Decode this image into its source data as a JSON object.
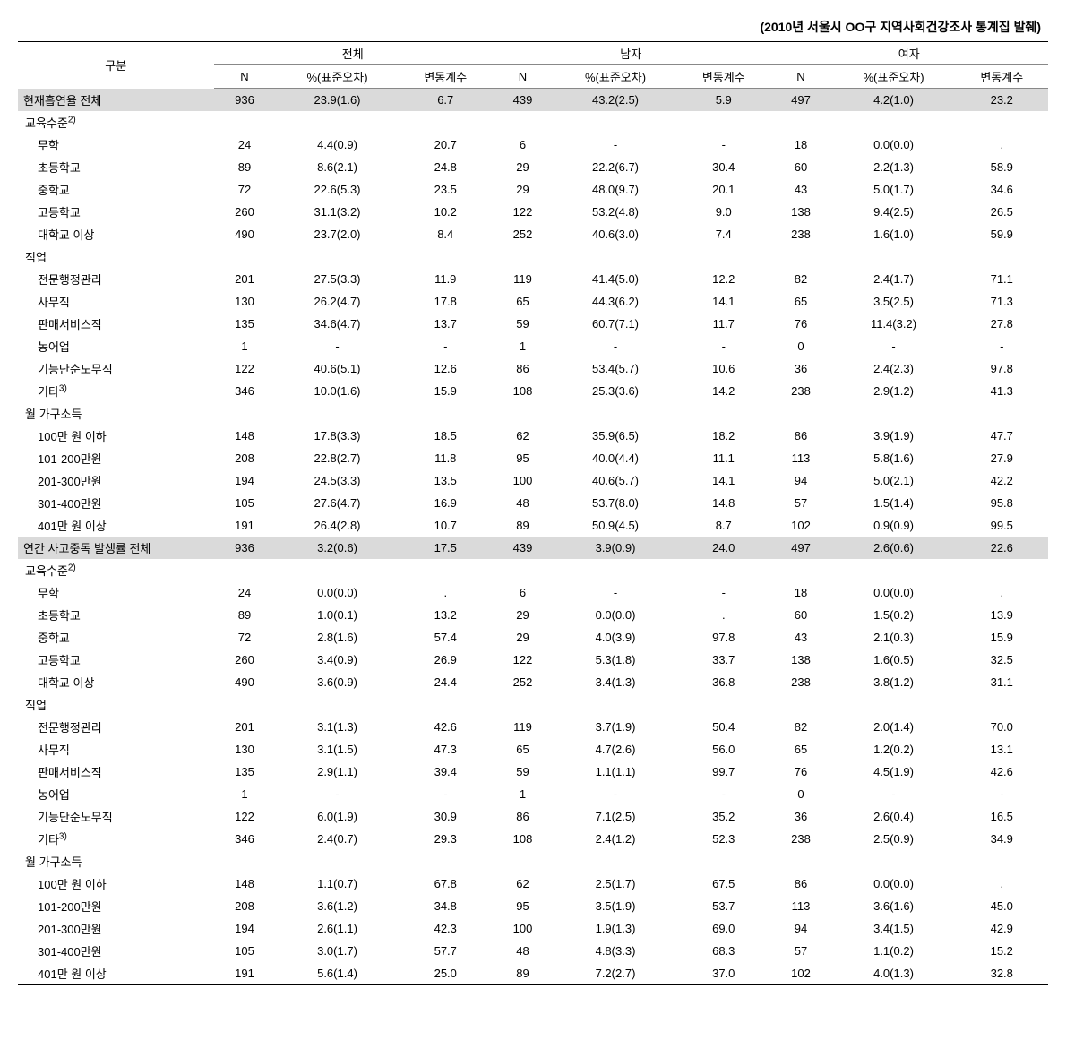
{
  "caption": "(2010년 서울시 OO구 지역사회건강조사 통계집 발췌)",
  "header": {
    "row_label": "구분",
    "groups": [
      "전체",
      "남자",
      "여자"
    ],
    "cols": [
      "N",
      "%(표준오차)",
      "변동계수"
    ]
  },
  "sup2": "2)",
  "sup3": "3)",
  "colors": {
    "background": "#ffffff",
    "highlight": "#dadada",
    "border_heavy": "#000000",
    "border_light": "#888888"
  },
  "sections": [
    {
      "title": "현재흡연율 전체",
      "total": [
        "936",
        "23.9(1.6)",
        "6.7",
        "439",
        "43.2(2.5)",
        "5.9",
        "497",
        "4.2(1.0)",
        "23.2"
      ],
      "groups": [
        {
          "label": "교육수준",
          "sup": "2)",
          "rows": [
            {
              "label": "무학",
              "v": [
                "24",
                "4.4(0.9)",
                "20.7",
                "6",
                "-",
                "-",
                "18",
                "0.0(0.0)",
                "."
              ]
            },
            {
              "label": "초등학교",
              "v": [
                "89",
                "8.6(2.1)",
                "24.8",
                "29",
                "22.2(6.7)",
                "30.4",
                "60",
                "2.2(1.3)",
                "58.9"
              ]
            },
            {
              "label": "중학교",
              "v": [
                "72",
                "22.6(5.3)",
                "23.5",
                "29",
                "48.0(9.7)",
                "20.1",
                "43",
                "5.0(1.7)",
                "34.6"
              ]
            },
            {
              "label": "고등학교",
              "v": [
                "260",
                "31.1(3.2)",
                "10.2",
                "122",
                "53.2(4.8)",
                "9.0",
                "138",
                "9.4(2.5)",
                "26.5"
              ]
            },
            {
              "label": "대학교 이상",
              "v": [
                "490",
                "23.7(2.0)",
                "8.4",
                "252",
                "40.6(3.0)",
                "7.4",
                "238",
                "1.6(1.0)",
                "59.9"
              ]
            }
          ]
        },
        {
          "label": "직업",
          "rows": [
            {
              "label": "전문행정관리",
              "v": [
                "201",
                "27.5(3.3)",
                "11.9",
                "119",
                "41.4(5.0)",
                "12.2",
                "82",
                "2.4(1.7)",
                "71.1"
              ]
            },
            {
              "label": "사무직",
              "v": [
                "130",
                "26.2(4.7)",
                "17.8",
                "65",
                "44.3(6.2)",
                "14.1",
                "65",
                "3.5(2.5)",
                "71.3"
              ]
            },
            {
              "label": "판매서비스직",
              "v": [
                "135",
                "34.6(4.7)",
                "13.7",
                "59",
                "60.7(7.1)",
                "11.7",
                "76",
                "11.4(3.2)",
                "27.8"
              ]
            },
            {
              "label": "농어업",
              "v": [
                "1",
                "-",
                "-",
                "1",
                "-",
                "-",
                "0",
                "-",
                "-"
              ]
            },
            {
              "label": "기능단순노무직",
              "v": [
                "122",
                "40.6(5.1)",
                "12.6",
                "86",
                "53.4(5.7)",
                "10.6",
                "36",
                "2.4(2.3)",
                "97.8"
              ]
            },
            {
              "label": "기타",
              "sup": "3)",
              "v": [
                "346",
                "10.0(1.6)",
                "15.9",
                "108",
                "25.3(3.6)",
                "14.2",
                "238",
                "2.9(1.2)",
                "41.3"
              ]
            }
          ]
        },
        {
          "label": "월 가구소득",
          "rows": [
            {
              "label": "100만 원 이하",
              "v": [
                "148",
                "17.8(3.3)",
                "18.5",
                "62",
                "35.9(6.5)",
                "18.2",
                "86",
                "3.9(1.9)",
                "47.7"
              ]
            },
            {
              "label": "101-200만원",
              "v": [
                "208",
                "22.8(2.7)",
                "11.8",
                "95",
                "40.0(4.4)",
                "11.1",
                "113",
                "5.8(1.6)",
                "27.9"
              ]
            },
            {
              "label": "201-300만원",
              "v": [
                "194",
                "24.5(3.3)",
                "13.5",
                "100",
                "40.6(5.7)",
                "14.1",
                "94",
                "5.0(2.1)",
                "42.2"
              ]
            },
            {
              "label": "301-400만원",
              "v": [
                "105",
                "27.6(4.7)",
                "16.9",
                "48",
                "53.7(8.0)",
                "14.8",
                "57",
                "1.5(1.4)",
                "95.8"
              ]
            },
            {
              "label": "401만 원 이상",
              "v": [
                "191",
                "26.4(2.8)",
                "10.7",
                "89",
                "50.9(4.5)",
                "8.7",
                "102",
                "0.9(0.9)",
                "99.5"
              ]
            }
          ]
        }
      ]
    },
    {
      "title": "연간 사고중독 발생률 전체",
      "total": [
        "936",
        "3.2(0.6)",
        "17.5",
        "439",
        "3.9(0.9)",
        "24.0",
        "497",
        "2.6(0.6)",
        "22.6"
      ],
      "groups": [
        {
          "label": "교육수준",
          "sup": "2)",
          "rows": [
            {
              "label": "무학",
              "v": [
                "24",
                "0.0(0.0)",
                ".",
                "6",
                "-",
                "-",
                "18",
                "0.0(0.0)",
                "."
              ]
            },
            {
              "label": "초등학교",
              "v": [
                "89",
                "1.0(0.1)",
                "13.2",
                "29",
                "0.0(0.0)",
                ".",
                "60",
                "1.5(0.2)",
                "13.9"
              ]
            },
            {
              "label": "중학교",
              "v": [
                "72",
                "2.8(1.6)",
                "57.4",
                "29",
                "4.0(3.9)",
                "97.8",
                "43",
                "2.1(0.3)",
                "15.9"
              ]
            },
            {
              "label": "고등학교",
              "v": [
                "260",
                "3.4(0.9)",
                "26.9",
                "122",
                "5.3(1.8)",
                "33.7",
                "138",
                "1.6(0.5)",
                "32.5"
              ]
            },
            {
              "label": "대학교 이상",
              "v": [
                "490",
                "3.6(0.9)",
                "24.4",
                "252",
                "3.4(1.3)",
                "36.8",
                "238",
                "3.8(1.2)",
                "31.1"
              ]
            }
          ]
        },
        {
          "label": "직업",
          "rows": [
            {
              "label": "전문행정관리",
              "v": [
                "201",
                "3.1(1.3)",
                "42.6",
                "119",
                "3.7(1.9)",
                "50.4",
                "82",
                "2.0(1.4)",
                "70.0"
              ]
            },
            {
              "label": "사무직",
              "v": [
                "130",
                "3.1(1.5)",
                "47.3",
                "65",
                "4.7(2.6)",
                "56.0",
                "65",
                "1.2(0.2)",
                "13.1"
              ]
            },
            {
              "label": "판매서비스직",
              "v": [
                "135",
                "2.9(1.1)",
                "39.4",
                "59",
                "1.1(1.1)",
                "99.7",
                "76",
                "4.5(1.9)",
                "42.6"
              ]
            },
            {
              "label": "농어업",
              "v": [
                "1",
                "-",
                "-",
                "1",
                "-",
                "-",
                "0",
                "-",
                "-"
              ]
            },
            {
              "label": "기능단순노무직",
              "v": [
                "122",
                "6.0(1.9)",
                "30.9",
                "86",
                "7.1(2.5)",
                "35.2",
                "36",
                "2.6(0.4)",
                "16.5"
              ]
            },
            {
              "label": "기타",
              "sup": "3)",
              "v": [
                "346",
                "2.4(0.7)",
                "29.3",
                "108",
                "2.4(1.2)",
                "52.3",
                "238",
                "2.5(0.9)",
                "34.9"
              ]
            }
          ]
        },
        {
          "label": "월 가구소득",
          "rows": [
            {
              "label": "100만 원 이하",
              "v": [
                "148",
                "1.1(0.7)",
                "67.8",
                "62",
                "2.5(1.7)",
                "67.5",
                "86",
                "0.0(0.0)",
                "."
              ]
            },
            {
              "label": "101-200만원",
              "v": [
                "208",
                "3.6(1.2)",
                "34.8",
                "95",
                "3.5(1.9)",
                "53.7",
                "113",
                "3.6(1.6)",
                "45.0"
              ]
            },
            {
              "label": "201-300만원",
              "v": [
                "194",
                "2.6(1.1)",
                "42.3",
                "100",
                "1.9(1.3)",
                "69.0",
                "94",
                "3.4(1.5)",
                "42.9"
              ]
            },
            {
              "label": "301-400만원",
              "v": [
                "105",
                "3.0(1.7)",
                "57.7",
                "48",
                "4.8(3.3)",
                "68.3",
                "57",
                "1.1(0.2)",
                "15.2"
              ]
            },
            {
              "label": "401만 원 이상",
              "v": [
                "191",
                "5.6(1.4)",
                "25.0",
                "89",
                "7.2(2.7)",
                "37.0",
                "102",
                "4.0(1.3)",
                "32.8"
              ]
            }
          ]
        }
      ]
    }
  ]
}
